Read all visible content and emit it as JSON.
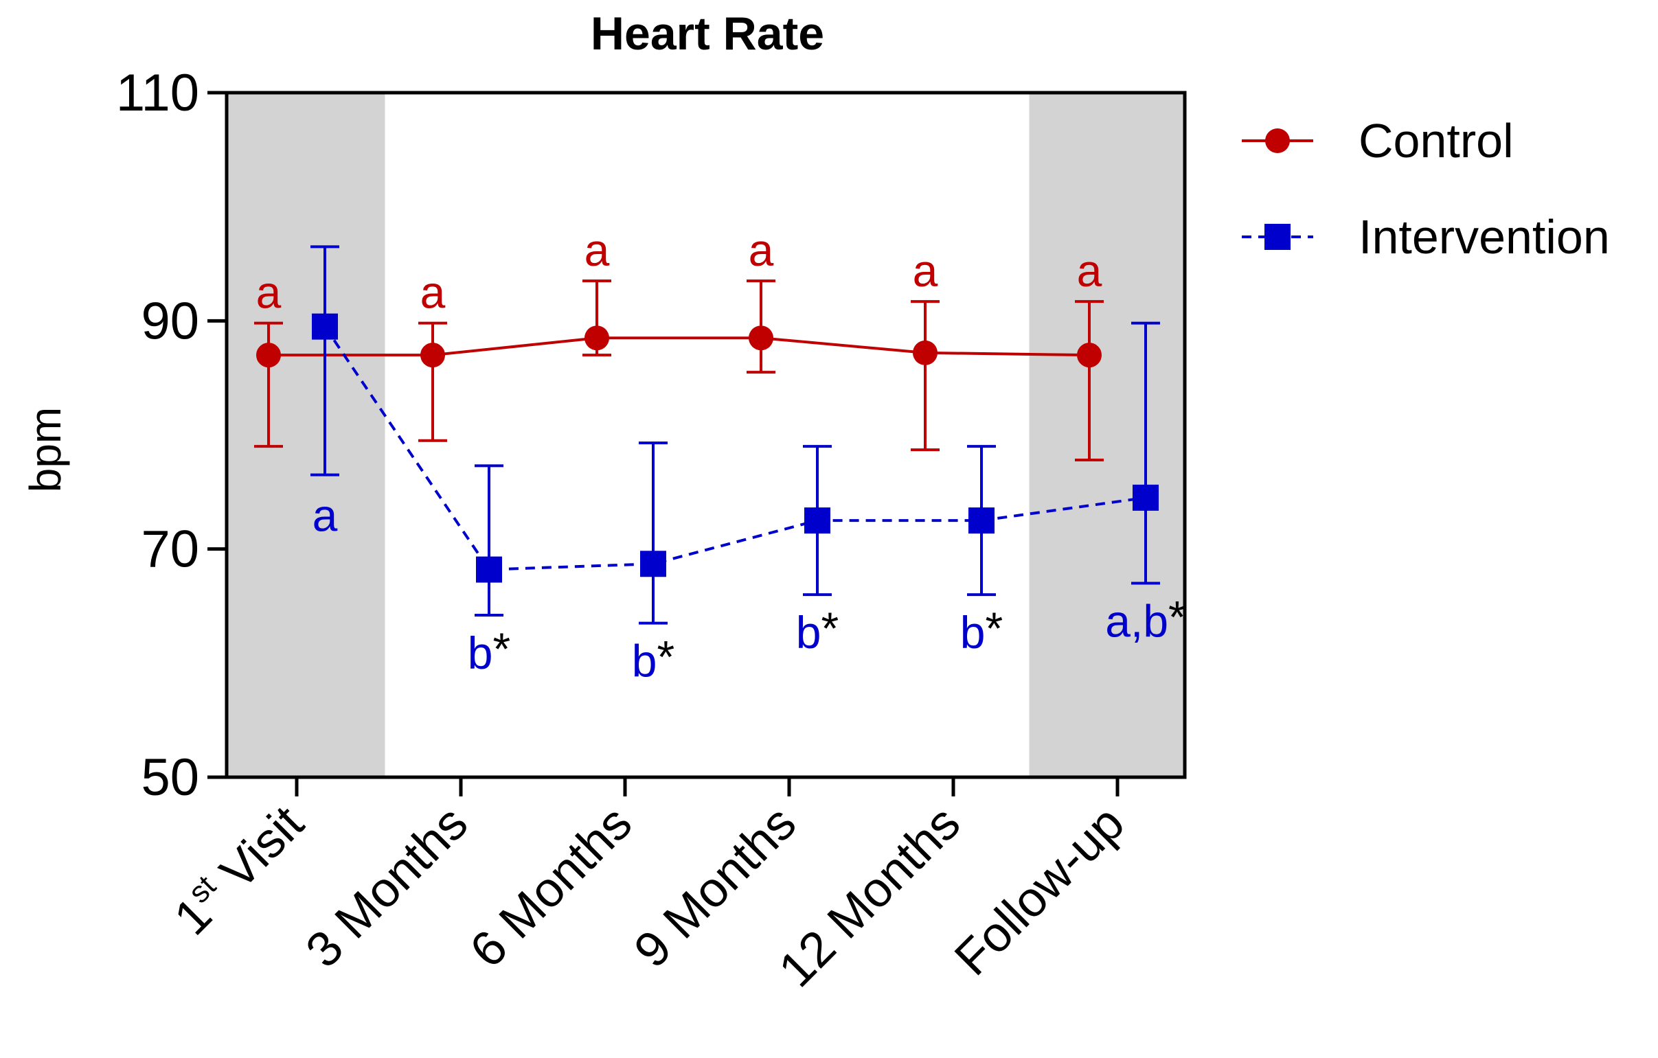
{
  "colors": {
    "control": "#c00000",
    "intervention": "#0000cc",
    "shade": "#d3d3d3",
    "axis": "#000000",
    "asterisk": "#000000"
  },
  "chart_data": {
    "type": "line",
    "title": "Heart Rate",
    "ylabel": "bpm",
    "xlabel": "",
    "ylim": [
      50,
      110
    ],
    "yticks": [
      "50",
      "70",
      "90",
      "110"
    ],
    "categories": [
      "1st Visit",
      "3 Months",
      "6 Months",
      "9 Months",
      "12 Months",
      "Follow-up"
    ],
    "first_category_parts": {
      "base": "1",
      "sup": "st",
      "rest": " Visit"
    },
    "shaded_categories": [
      "1st Visit",
      "Follow-up"
    ],
    "legend": {
      "position": "right"
    },
    "series": [
      {
        "name": "Control",
        "marker": "circle",
        "line": "solid",
        "values": [
          87.0,
          87.0,
          88.5,
          88.5,
          87.2,
          87.0
        ],
        "err_low": [
          79.0,
          79.5,
          87.0,
          85.5,
          78.7,
          77.8
        ],
        "err_high": [
          89.8,
          89.8,
          93.5,
          93.5,
          91.7,
          91.7
        ],
        "labels": [
          {
            "letters": "a",
            "star": ""
          },
          {
            "letters": "a",
            "star": ""
          },
          {
            "letters": "a",
            "star": ""
          },
          {
            "letters": "a",
            "star": ""
          },
          {
            "letters": "a",
            "star": ""
          },
          {
            "letters": "a",
            "star": ""
          }
        ]
      },
      {
        "name": "Intervention",
        "marker": "square",
        "line": "dashed",
        "values": [
          89.5,
          68.2,
          68.7,
          72.5,
          72.5,
          74.5
        ],
        "err_low": [
          76.5,
          64.2,
          63.5,
          66.0,
          66.0,
          67.0
        ],
        "err_high": [
          96.5,
          77.3,
          79.3,
          79.0,
          79.0,
          89.8
        ],
        "labels": [
          {
            "letters": "a",
            "star": ""
          },
          {
            "letters": "b",
            "star": "*"
          },
          {
            "letters": "b",
            "star": "*"
          },
          {
            "letters": "b",
            "star": "*"
          },
          {
            "letters": "b",
            "star": "*"
          },
          {
            "letters": "a,b",
            "star": "*"
          }
        ]
      }
    ]
  }
}
